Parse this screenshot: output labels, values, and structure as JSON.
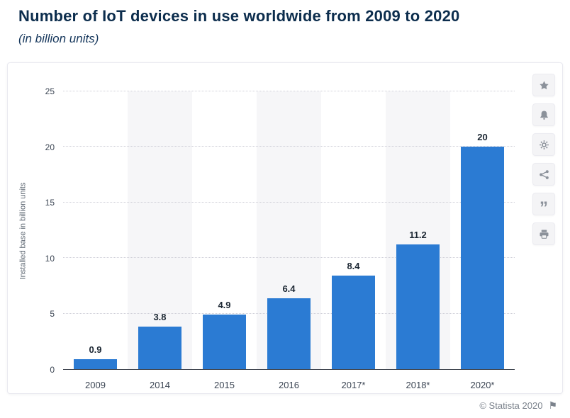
{
  "page": {
    "title": "Number of IoT devices in use worldwide from 2009 to 2020",
    "subtitle": "(in billion units)",
    "footer": "© Statista 2020"
  },
  "toolbar": {
    "icons": [
      "star",
      "bell",
      "gear",
      "share",
      "quote",
      "print"
    ]
  },
  "chart_data": {
    "type": "bar",
    "title": "Number of IoT devices in use worldwide from 2009 to 2020",
    "subtitle": "(in billion units)",
    "categories": [
      "2009",
      "2014",
      "2015",
      "2016",
      "2017*",
      "2018*",
      "2020*"
    ],
    "values": [
      0.9,
      3.8,
      4.9,
      6.4,
      8.4,
      11.2,
      20
    ],
    "value_labels": [
      "0.9",
      "3.8",
      "4.9",
      "6.4",
      "8.4",
      "11.2",
      "20"
    ],
    "xlabel": "",
    "ylabel": "Installed base in billion units",
    "ylim": [
      0,
      25
    ],
    "yticks": [
      0,
      5,
      10,
      15,
      20,
      25
    ],
    "bar_color": "#2b7bd3",
    "stripe_color": "#f6f6f8",
    "grid": "horizontal-dotted",
    "legend": "none"
  }
}
